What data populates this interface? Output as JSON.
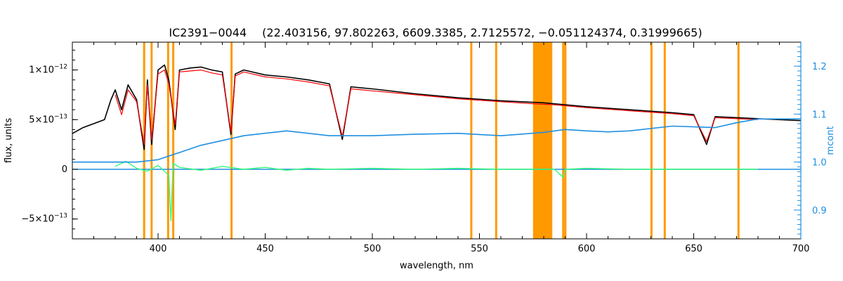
{
  "chart_data": {
    "type": "line",
    "title": "IC2391−0044",
    "subtitle": "(22.403156, 97.802263, 6609.3385, 2.7125572, −0.051124374, 0.31999665)",
    "xlabel": "wavelength, nm",
    "ylabel": "flux, units",
    "ylabel_right": "mcont",
    "xlim": [
      360,
      700
    ],
    "ylim": [
      -7e-13,
      1.28e-12
    ],
    "ylim_right": [
      0.84,
      1.25
    ],
    "x_ticks": [
      400,
      450,
      500,
      550,
      600,
      650,
      700
    ],
    "x_tick_labels": [
      "400",
      "450",
      "500",
      "550",
      "600",
      "650",
      "700"
    ],
    "y_ticks": [
      -5e-13,
      0,
      5e-13,
      1e-12
    ],
    "y_tick_labels": [
      {
        "mantissa": "−5×10",
        "exp": "−13"
      },
      {
        "mantissa": "0",
        "exp": ""
      },
      {
        "mantissa": "5×10",
        "exp": "−13"
      },
      {
        "mantissa": "1×10",
        "exp": "−12"
      }
    ],
    "y_right_ticks": [
      0.9,
      1.0,
      1.1,
      1.2
    ],
    "y_right_tick_labels": [
      "0.9",
      "1.0",
      "1.1",
      "1.2"
    ],
    "colors": {
      "observed": "#000000",
      "model": "#ff0000",
      "residual": "#33ff77",
      "continuum": "#1f8fe0",
      "mask": "#ff9900",
      "highlight": "#ffff00"
    },
    "masked_regions_nm": [
      [
        393.0,
        394.0
      ],
      [
        396.5,
        397.3
      ],
      [
        404.2,
        405.0
      ],
      [
        406.6,
        407.4
      ],
      [
        433.8,
        434.6
      ],
      [
        545.7,
        546.5
      ],
      [
        557.3,
        558.1
      ],
      [
        575.0,
        584.0
      ],
      [
        588.6,
        589.4
      ],
      [
        589.6,
        590.4
      ],
      [
        629.8,
        630.6
      ],
      [
        636.0,
        636.8
      ],
      [
        670.4,
        671.2
      ]
    ],
    "series": [
      {
        "key": "observed",
        "x": [
          360,
          365,
          370,
          375,
          378,
          380,
          383,
          386,
          390,
          393.5,
          395,
          397,
          400,
          403,
          405,
          408,
          410,
          415,
          420,
          425,
          430,
          434,
          436,
          440,
          450,
          460,
          470,
          480,
          486,
          490,
          500,
          520,
          540,
          560,
          580,
          600,
          620,
          640,
          650,
          656,
          660,
          680,
          700
        ],
        "y": [
          3.6e-13,
          4.2e-13,
          4.6e-13,
          5e-13,
          7e-13,
          8e-13,
          6e-13,
          8.5e-13,
          7e-13,
          2e-13,
          9e-13,
          2.5e-13,
          1e-12,
          1.05e-12,
          9e-13,
          4e-13,
          1e-12,
          1.02e-12,
          1.03e-12,
          1e-12,
          9.8e-13,
          3.5e-13,
          9.6e-13,
          1e-12,
          9.5e-13,
          9.3e-13,
          9e-13,
          8.6e-13,
          3e-13,
          8.3e-13,
          8.1e-13,
          7.6e-13,
          7.2e-13,
          6.9e-13,
          6.7e-13,
          6.3e-13,
          6e-13,
          5.7e-13,
          5.5e-13,
          2.5e-13,
          5.3e-13,
          5.1e-13,
          4.9e-13
        ]
      },
      {
        "key": "model",
        "x": [
          380,
          383,
          386,
          390,
          393.5,
          395,
          397,
          400,
          403,
          405,
          408,
          410,
          415,
          420,
          425,
          430,
          434,
          436,
          440,
          450,
          460,
          470,
          480,
          486,
          490,
          500,
          520,
          540,
          560,
          575,
          585,
          600,
          620,
          640,
          650,
          656,
          660,
          680
        ],
        "y": [
          7.5e-13,
          5.5e-13,
          8e-13,
          6.8e-13,
          2.5e-13,
          8.5e-13,
          3e-13,
          9.6e-13,
          1e-12,
          8.6e-13,
          4.5e-13,
          9.8e-13,
          9.9e-13,
          1e-12,
          9.7e-13,
          9.5e-13,
          3.8e-13,
          9.4e-13,
          9.8e-13,
          9.3e-13,
          9.1e-13,
          8.8e-13,
          8.4e-13,
          3.3e-13,
          8.1e-13,
          7.9e-13,
          7.5e-13,
          7.1e-13,
          6.8e-13,
          6.6e-13,
          6.5e-13,
          6.2e-13,
          5.9e-13,
          5.6e-13,
          5.4e-13,
          2.8e-13,
          5.2e-13,
          5e-13
        ]
      },
      {
        "key": "residual",
        "x": [
          380,
          385,
          390,
          395,
          400,
          405,
          406,
          407,
          410,
          420,
          430,
          440,
          450,
          460,
          470,
          480,
          500,
          520,
          540,
          560,
          575,
          585,
          589,
          590,
          600,
          620,
          640,
          660,
          680
        ],
        "y": [
          3e-14,
          8e-14,
          1e-14,
          -2e-14,
          4e-14,
          -6e-14,
          -5.2e-13,
          6e-14,
          2e-14,
          -1e-14,
          3e-14,
          0,
          2e-14,
          -1e-14,
          1e-14,
          0,
          1e-14,
          0,
          1e-14,
          0,
          0,
          0,
          -8e-14,
          0,
          1e-14,
          0,
          0,
          0,
          0
        ]
      },
      {
        "key": "continuum_mcont",
        "x": [
          360,
          380,
          390,
          400,
          410,
          420,
          440,
          460,
          480,
          500,
          520,
          540,
          560,
          580,
          590,
          600,
          610,
          620,
          640,
          660,
          670,
          680,
          700
        ],
        "y": [
          1.0,
          1.0,
          1.0,
          1.005,
          1.02,
          1.035,
          1.055,
          1.065,
          1.055,
          1.055,
          1.058,
          1.06,
          1.055,
          1.062,
          1.068,
          1.065,
          1.063,
          1.065,
          1.075,
          1.072,
          1.082,
          1.09,
          1.09
        ]
      }
    ]
  }
}
